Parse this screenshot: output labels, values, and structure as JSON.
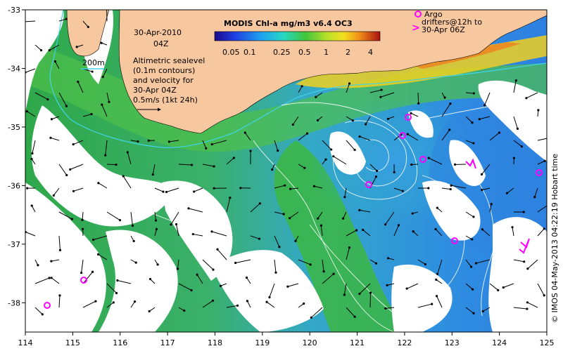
{
  "map": {
    "title": "MODIS Chl-a mg/m3 v6.4 OC3",
    "date_line1": "30-Apr-2010",
    "date_line2": "04Z",
    "legend_note": [
      "Altimetric sealevel",
      "(0.1m contours)",
      "and velocity for",
      "30-Apr 04Z",
      "0.5m/s (1kt 24h)"
    ],
    "isobath_label": "200m",
    "argo_legend": [
      "Argo",
      "drifters@12h to",
      "30-Apr 06Z"
    ],
    "colorbar_ticks": [
      "0.05",
      "0.1",
      "0.25",
      "0.5",
      "1",
      "2",
      "4"
    ],
    "credit": "© IMOS 04-May-2013 04:22:19 Hobart time",
    "x_ticks": [
      "114",
      "115",
      "116",
      "117",
      "118",
      "119",
      "120",
      "121",
      "122",
      "123",
      "124",
      "125"
    ],
    "y_ticks": [
      "-33",
      "-34",
      "-35",
      "-36",
      "-37",
      "-38"
    ],
    "x_range": [
      114,
      125
    ],
    "y_range": [
      -38.5,
      -33
    ],
    "colors": {
      "land": "#f7c7a0",
      "isobath": "#41d3e8",
      "contour": "#ffffff",
      "argo": "#ff00ff",
      "cloud": "#ffffff"
    }
  }
}
